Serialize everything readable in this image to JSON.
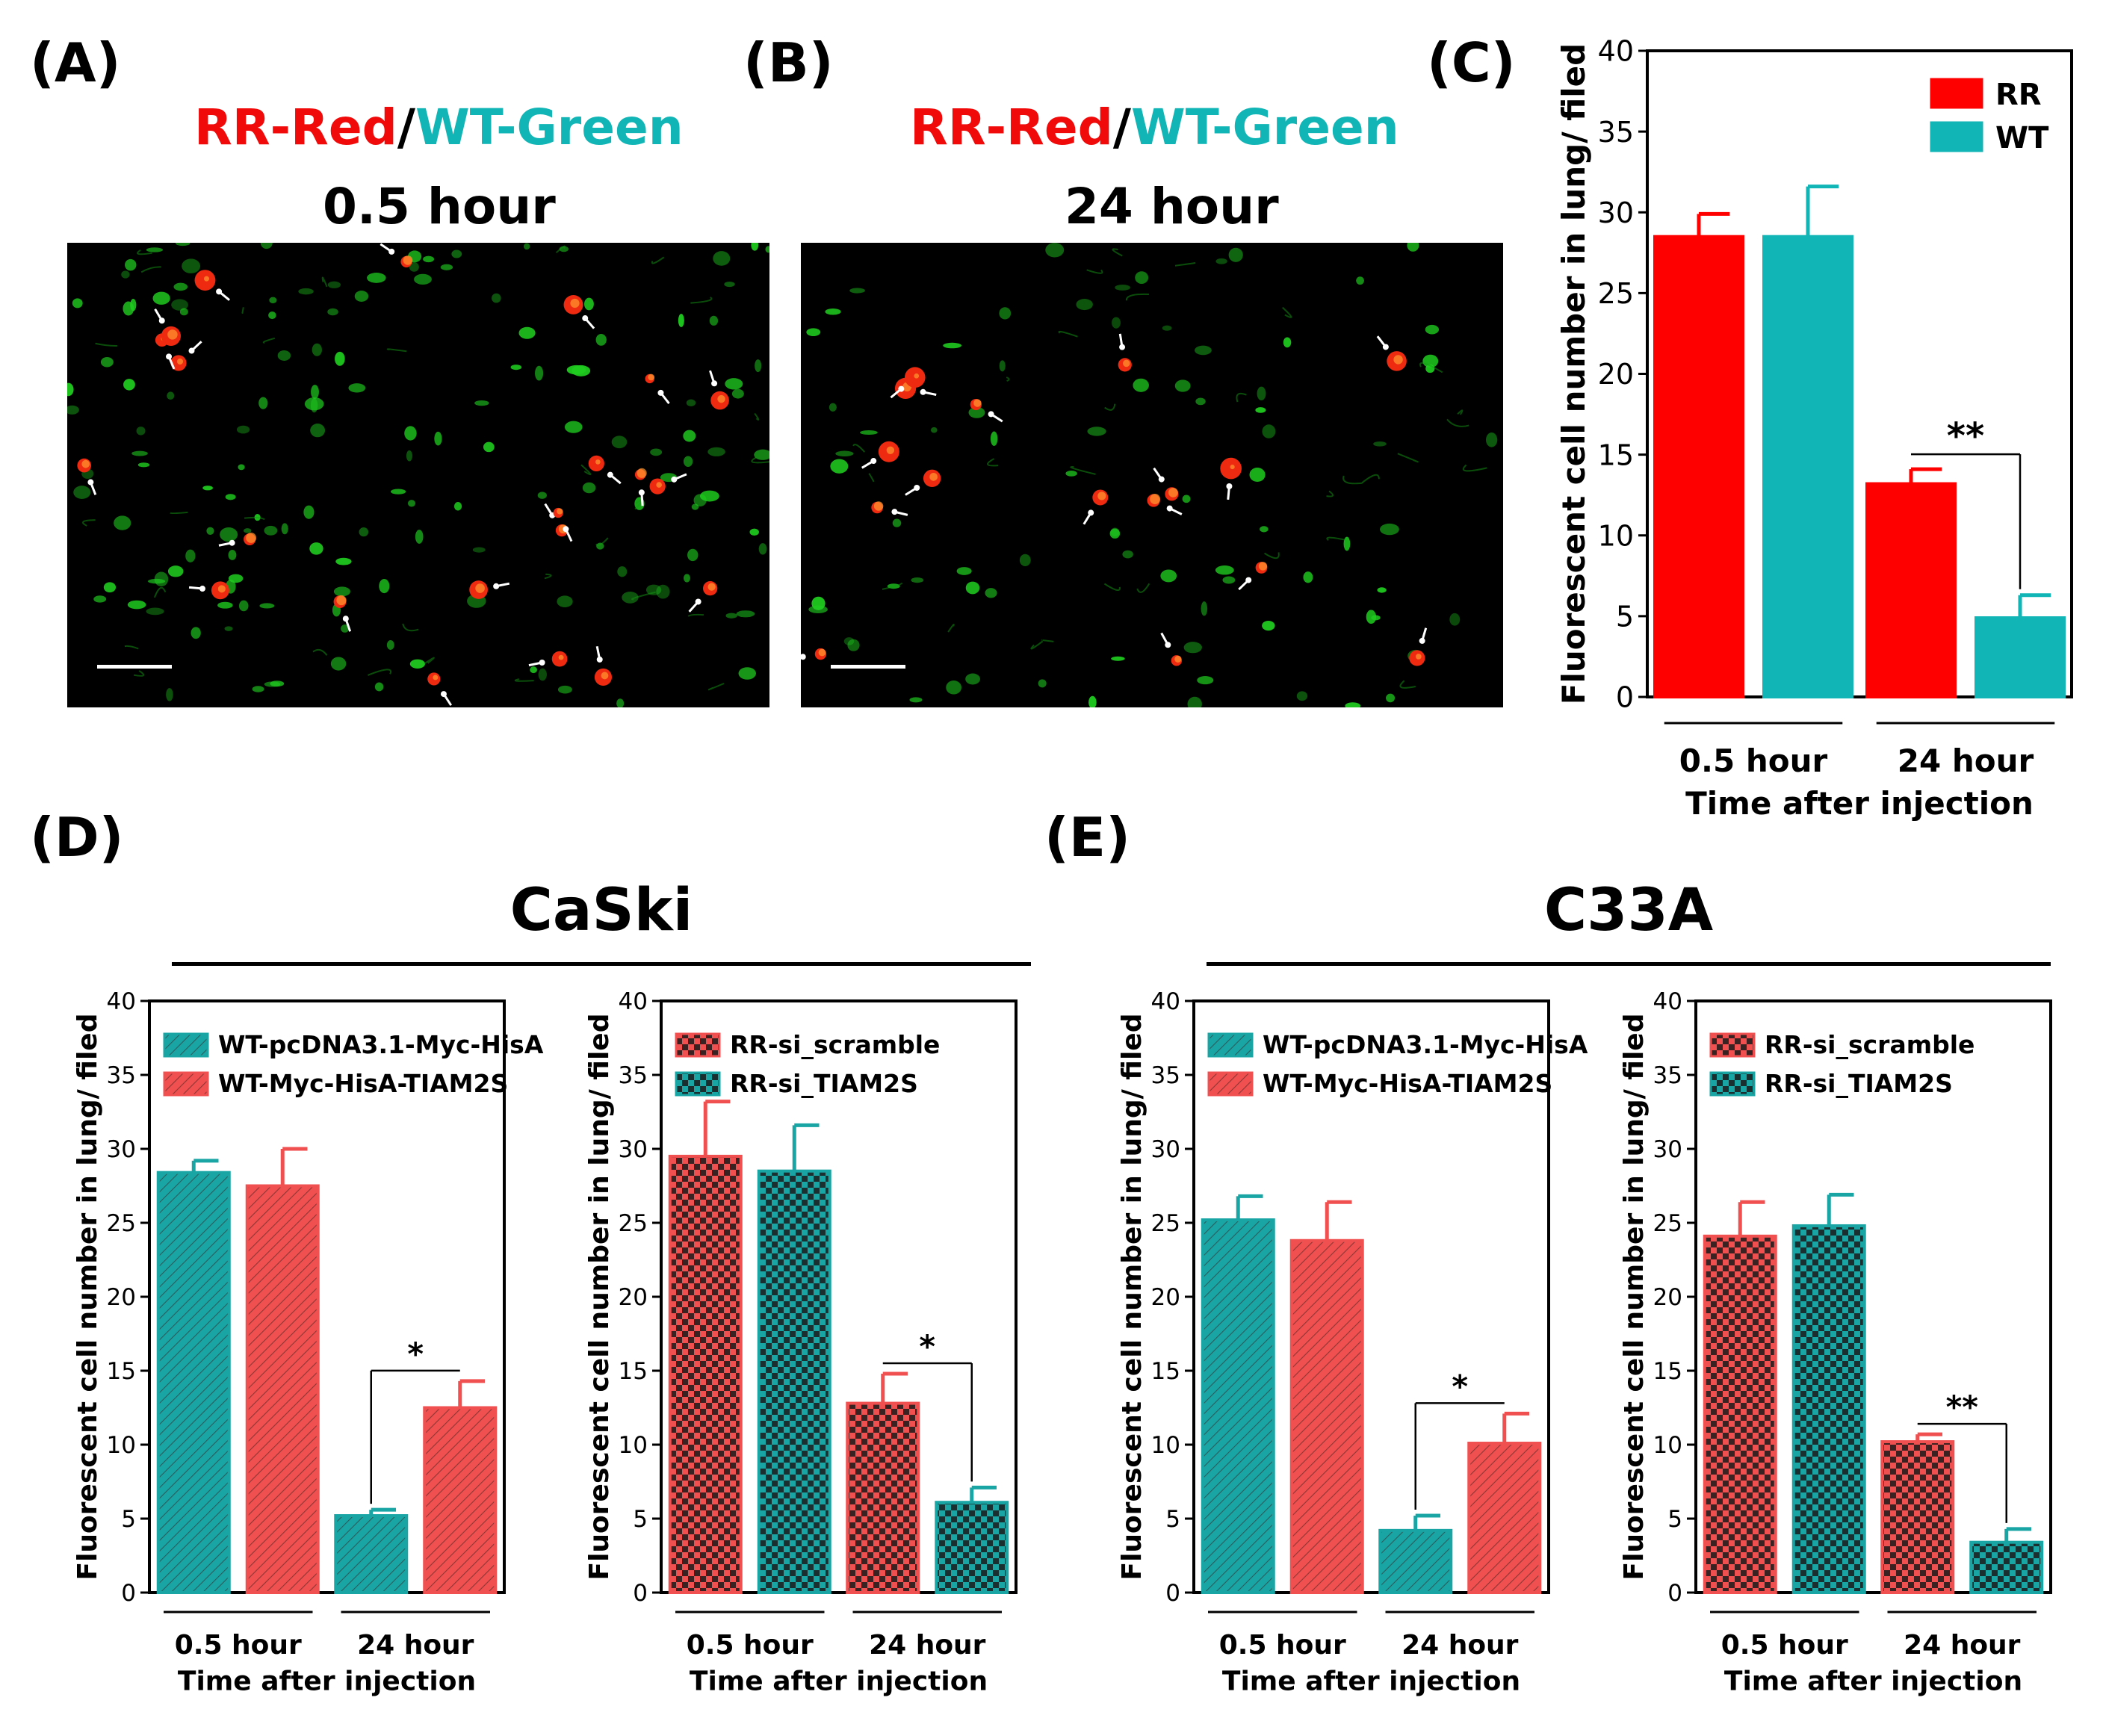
{
  "panels": {
    "A": {
      "label": "(A)",
      "title_red": "RR-Red",
      "title_sep": "/",
      "title_green": "WT-Green",
      "subtitle": "0.5 hour"
    },
    "B": {
      "label": "(B)",
      "title_red": "RR-Red",
      "title_sep": "/",
      "title_green": "WT-Green",
      "subtitle": "24 hour"
    },
    "C": {
      "label": "(C)"
    },
    "D": {
      "label": "(D)",
      "group_title": "CaSki"
    },
    "E": {
      "label": "(E)",
      "group_title": "C33A"
    }
  },
  "colors": {
    "red": "#ff0000",
    "teal": "#12b5b5",
    "red_pattern": "#f05050",
    "teal_pattern": "#1aa5a5"
  },
  "chart_data": [
    {
      "id": "C",
      "type": "bar",
      "ylabel": "Fluorescent cell number in lung/ filed",
      "xlabel": "Time after injection",
      "categories": [
        "0.5 hour",
        "24 hour"
      ],
      "ylim": [
        0,
        40
      ],
      "yticks": [
        "0",
        "5",
        "10",
        "15",
        "20",
        "25",
        "30",
        "35",
        "40"
      ],
      "legend_position": "top-right",
      "series": [
        {
          "name": "RR",
          "values": [
            28.5,
            13.2
          ],
          "errors": [
            1.4,
            0.9
          ],
          "fill": "solid-red"
        },
        {
          "name": "WT",
          "values": [
            28.5,
            4.9
          ],
          "errors": [
            3.1,
            1.4
          ],
          "fill": "solid-teal"
        }
      ],
      "significance": [
        {
          "category": "24 hour",
          "label": "**"
        }
      ]
    },
    {
      "id": "D1",
      "type": "bar",
      "ylabel": "Fluorescent cell number in lung/ filed",
      "xlabel": "Time after injection",
      "categories": [
        "0.5 hour",
        "24 hour"
      ],
      "ylim": [
        0,
        40
      ],
      "yticks": [
        "0",
        "5",
        "10",
        "15",
        "20",
        "25",
        "30",
        "35",
        "40"
      ],
      "legend_position": "top-left",
      "series": [
        {
          "name": "WT-pcDNA3.1-Myc-HisA",
          "values": [
            28.4,
            5.2
          ],
          "errors": [
            0.8,
            0.4
          ],
          "fill": "hatch-teal"
        },
        {
          "name": "WT-Myc-HisA-TIAM2S",
          "values": [
            27.5,
            12.5
          ],
          "errors": [
            2.5,
            1.8
          ],
          "fill": "hatch-red"
        }
      ],
      "significance": [
        {
          "category": "24 hour",
          "label": "*"
        }
      ]
    },
    {
      "id": "D2",
      "type": "bar",
      "ylabel": "Fluorescent cell number in lung/ filed",
      "xlabel": "Time after injection",
      "categories": [
        "0.5 hour",
        "24 hour"
      ],
      "ylim": [
        0,
        40
      ],
      "yticks": [
        "0",
        "5",
        "10",
        "15",
        "20",
        "25",
        "30",
        "35",
        "40"
      ],
      "legend_position": "top-left",
      "series": [
        {
          "name": "RR-si_scramble",
          "values": [
            29.5,
            12.8
          ],
          "errors": [
            3.7,
            2.0
          ],
          "fill": "check-red"
        },
        {
          "name": "RR-si_TIAM2S",
          "values": [
            28.5,
            6.1
          ],
          "errors": [
            3.1,
            1.0
          ],
          "fill": "check-teal"
        }
      ],
      "significance": [
        {
          "category": "24 hour",
          "label": "*"
        }
      ]
    },
    {
      "id": "E1",
      "type": "bar",
      "ylabel": "Fluorescent cell number in lung/ filed",
      "xlabel": "Time after injection",
      "categories": [
        "0.5 hour",
        "24 hour"
      ],
      "ylim": [
        0,
        40
      ],
      "yticks": [
        "0",
        "5",
        "10",
        "15",
        "20",
        "25",
        "30",
        "35",
        "40"
      ],
      "legend_position": "top-left",
      "series": [
        {
          "name": "WT-pcDNA3.1-Myc-HisA",
          "values": [
            25.2,
            4.2
          ],
          "errors": [
            1.6,
            1.0
          ],
          "fill": "hatch-teal"
        },
        {
          "name": "WT-Myc-HisA-TIAM2S",
          "values": [
            23.8,
            10.1
          ],
          "errors": [
            2.6,
            2.0
          ],
          "fill": "hatch-red"
        }
      ],
      "significance": [
        {
          "category": "24 hour",
          "label": "*"
        }
      ]
    },
    {
      "id": "E2",
      "type": "bar",
      "ylabel": "Fluorescent cell number in lung/ filed",
      "xlabel": "Time after injection",
      "categories": [
        "0.5 hour",
        "24 hour"
      ],
      "ylim": [
        0,
        40
      ],
      "yticks": [
        "0",
        "5",
        "10",
        "15",
        "20",
        "25",
        "30",
        "35",
        "40"
      ],
      "legend_position": "top-left",
      "series": [
        {
          "name": "RR-si_scramble",
          "values": [
            24.1,
            10.2
          ],
          "errors": [
            2.3,
            0.5
          ],
          "fill": "check-red"
        },
        {
          "name": "RR-si_TIAM2S",
          "values": [
            24.8,
            3.4
          ],
          "errors": [
            2.1,
            0.9
          ],
          "fill": "check-teal"
        }
      ],
      "significance": [
        {
          "category": "24 hour",
          "label": "**"
        }
      ]
    }
  ]
}
